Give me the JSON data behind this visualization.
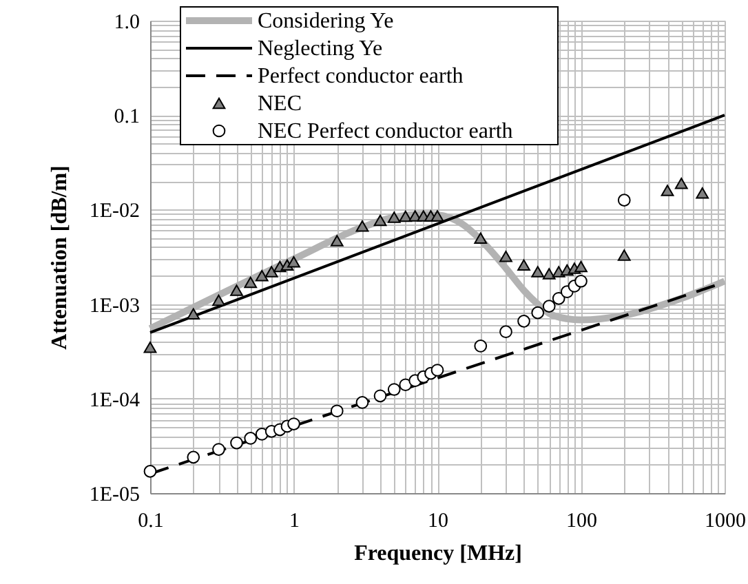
{
  "chart_data": {
    "type": "line",
    "xlabel": "Frequency [MHz]",
    "ylabel": "Attenuation [dB/m]",
    "log": "xy",
    "grid": true,
    "legend": "top",
    "xlim": [
      0.1,
      1000
    ],
    "ylim": [
      1e-05,
      1
    ],
    "xticks": [
      0.1,
      {
        "value": 0.2,
        "label": null
      },
      {
        "value": 0.3,
        "label": null
      },
      {
        "value": 0.4,
        "label": null
      },
      {
        "value": 0.5,
        "label": null
      },
      {
        "value": 0.6,
        "label": null
      },
      {
        "value": 0.7,
        "label": null
      },
      {
        "value": 0.8,
        "label": null
      },
      {
        "value": 0.9,
        "label": null
      },
      1,
      {
        "value": 2,
        "label": null
      },
      {
        "value": 3,
        "label": null
      },
      {
        "value": 4,
        "label": null
      },
      {
        "value": 5,
        "label": null
      },
      {
        "value": 6,
        "label": null
      },
      {
        "value": 7,
        "label": null
      },
      {
        "value": 8,
        "label": null
      },
      {
        "value": 9,
        "label": null
      },
      10,
      {
        "value": 20,
        "label": null
      },
      {
        "value": 30,
        "label": null
      },
      {
        "value": 40,
        "label": null
      },
      {
        "value": 50,
        "label": null
      },
      {
        "value": 60,
        "label": null
      },
      {
        "value": 70,
        "label": null
      },
      {
        "value": 80,
        "label": null
      },
      {
        "value": 90,
        "label": null
      },
      100,
      {
        "value": 200,
        "label": null
      },
      {
        "value": 300,
        "label": null
      },
      {
        "value": 400,
        "label": null
      },
      {
        "value": 500,
        "label": null
      },
      {
        "value": 600,
        "label": null
      },
      {
        "value": 700,
        "label": null
      },
      {
        "value": 800,
        "label": null
      },
      {
        "value": 900,
        "label": null
      },
      1000
    ],
    "yticks": [
      {
        "value": 1e-05,
        "label": "1E-05"
      },
      {
        "value": 2e-05,
        "label": null
      },
      {
        "value": 3e-05,
        "label": null
      },
      {
        "value": 4e-05,
        "label": null
      },
      {
        "value": 5e-05,
        "label": null
      },
      {
        "value": 6e-05,
        "label": null
      },
      {
        "value": 7e-05,
        "label": null
      },
      {
        "value": 8e-05,
        "label": null
      },
      {
        "value": 9e-05,
        "label": null
      },
      {
        "value": 0.0001,
        "label": "1E-04"
      },
      {
        "value": 0.0002,
        "label": null
      },
      {
        "value": 0.0003,
        "label": null
      },
      {
        "value": 0.0004,
        "label": null
      },
      {
        "value": 0.0005,
        "label": null
      },
      {
        "value": 0.0006,
        "label": null
      },
      {
        "value": 0.0007,
        "label": null
      },
      {
        "value": 0.0008,
        "label": null
      },
      {
        "value": 0.0009,
        "label": null
      },
      {
        "value": 0.001,
        "label": "1E-03"
      },
      {
        "value": 0.002,
        "label": null
      },
      {
        "value": 0.003,
        "label": null
      },
      {
        "value": 0.004,
        "label": null
      },
      {
        "value": 0.005,
        "label": null
      },
      {
        "value": 0.006,
        "label": null
      },
      {
        "value": 0.007,
        "label": null
      },
      {
        "value": 0.008,
        "label": null
      },
      {
        "value": 0.009,
        "label": null
      },
      {
        "value": 0.01,
        "label": "1E-02"
      },
      {
        "value": 0.02,
        "label": null
      },
      {
        "value": 0.03,
        "label": null
      },
      {
        "value": 0.04,
        "label": null
      },
      {
        "value": 0.05,
        "label": null
      },
      {
        "value": 0.06,
        "label": null
      },
      {
        "value": 0.07,
        "label": null
      },
      {
        "value": 0.08,
        "label": null
      },
      {
        "value": 0.09,
        "label": null
      },
      0.1,
      {
        "value": 0.2,
        "label": null
      },
      {
        "value": 0.3,
        "label": null
      },
      {
        "value": 0.4,
        "label": null
      },
      {
        "value": 0.5,
        "label": null
      },
      {
        "value": 0.6,
        "label": null
      },
      {
        "value": 0.7,
        "label": null
      },
      {
        "value": 0.8,
        "label": null
      },
      {
        "value": 0.9,
        "label": null
      },
      {
        "value": 1,
        "label": "1.0"
      }
    ],
    "series": [
      {
        "name": "Considering Ye",
        "color": "#b3b3b3",
        "line_style": "solid",
        "marker": "none",
        "x": [
          0.1,
          1,
          3,
          5,
          8,
          10,
          15,
          20,
          30,
          40,
          50,
          60,
          80,
          100,
          200,
          500,
          1000
        ],
        "values": [
          0.00055,
          0.003,
          0.0065,
          0.0083,
          0.0089,
          0.0088,
          0.007,
          0.0048,
          0.0024,
          0.0014,
          0.001,
          0.0008,
          0.0007,
          0.00068,
          0.00076,
          0.00115,
          0.00175
        ]
      },
      {
        "name": "Neglecting Ye",
        "color": "#000000",
        "line_style": "solid",
        "marker": "none",
        "x": [
          0.1,
          1000
        ],
        "values": [
          0.0005,
          0.1
        ]
      },
      {
        "name": "Perfect conductor earth",
        "color": "#000000",
        "line_style": "dashed",
        "marker": "none",
        "x": [
          0.1,
          1000
        ],
        "values": [
          1.6e-05,
          0.0017
        ]
      },
      {
        "name": "NEC",
        "type": "scatter",
        "color": "#808080",
        "marker": "triangle",
        "x": [
          0.1,
          0.2,
          0.3,
          0.4,
          0.5,
          0.6,
          0.7,
          0.8,
          0.9,
          1,
          2,
          3,
          4,
          5,
          6,
          7,
          8,
          9,
          10,
          20,
          30,
          40,
          50,
          60,
          70,
          80,
          90,
          100,
          200,
          400,
          500,
          700
        ],
        "values": [
          0.00035,
          0.00079,
          0.0011,
          0.0014,
          0.0017,
          0.002,
          0.0022,
          0.0025,
          0.0026,
          0.0028,
          0.0047,
          0.0067,
          0.0077,
          0.0083,
          0.0085,
          0.0086,
          0.0086,
          0.0086,
          0.0086,
          0.005,
          0.0032,
          0.0026,
          0.0022,
          0.0021,
          0.0022,
          0.0023,
          0.0024,
          0.0025,
          0.0033,
          0.016,
          0.019,
          0.015
        ]
      },
      {
        "name": "NEC Perfect conductor earth",
        "type": "scatter",
        "color": "#ffffff",
        "marker": "circle",
        "x": [
          0.1,
          0.2,
          0.3,
          0.4,
          0.5,
          0.6,
          0.7,
          0.8,
          0.9,
          1,
          2,
          3,
          4,
          5,
          6,
          7,
          8,
          9,
          10,
          20,
          30,
          40,
          50,
          60,
          70,
          80,
          90,
          100,
          200
        ],
        "values": [
          1.7e-05,
          2.4e-05,
          2.9e-05,
          3.4e-05,
          3.8e-05,
          4.2e-05,
          4.5e-05,
          4.7e-05,
          5.1e-05,
          5.4e-05,
          7.4e-05,
          9.1e-05,
          0.000107,
          0.000125,
          0.00014,
          0.000155,
          0.00017,
          0.000185,
          0.0002,
          0.00036,
          0.00051,
          0.00066,
          0.00081,
          0.00095,
          0.00115,
          0.00135,
          0.00155,
          0.00175,
          0.0126
        ]
      }
    ]
  }
}
